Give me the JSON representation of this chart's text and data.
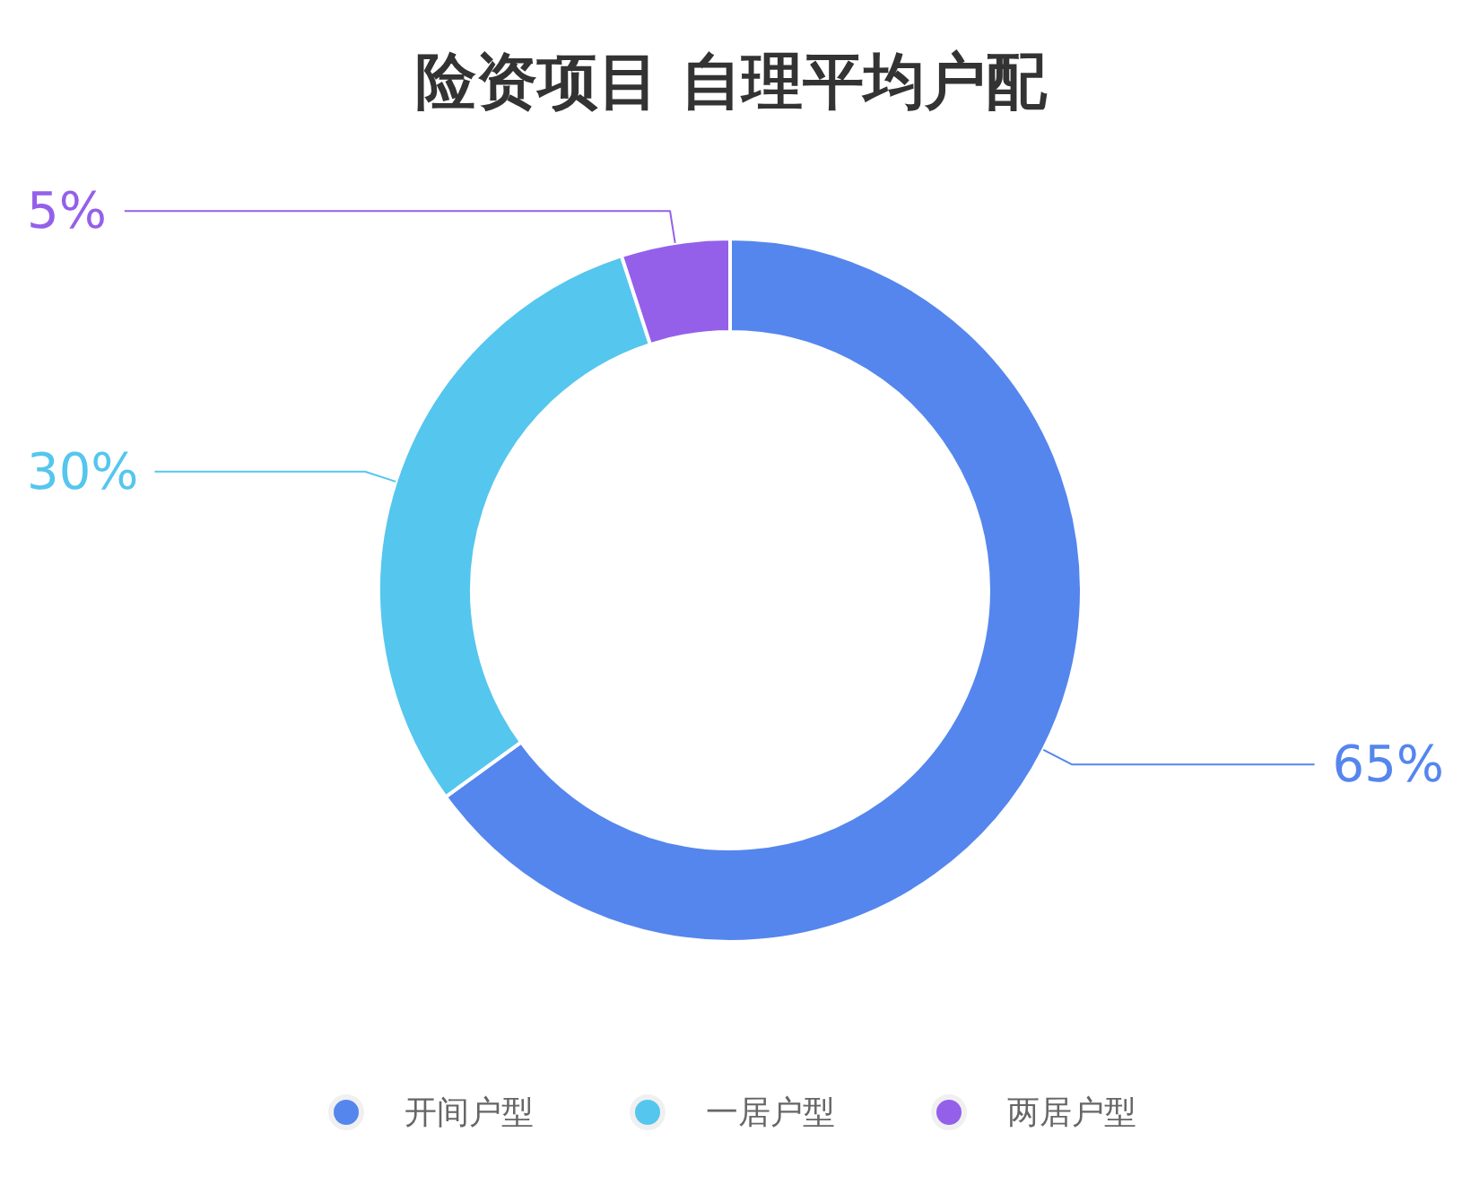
{
  "chart_data": {
    "type": "donut",
    "title": "险资项目 自理平均户配",
    "categories": [
      "开间户型",
      "一居户型",
      "两居户型"
    ],
    "values": [
      65,
      30,
      5
    ],
    "colors": [
      "#5586ee",
      "#55c6ee",
      "#9460ea"
    ],
    "value_labels": [
      "65%",
      "30%",
      "5%"
    ],
    "legend": "bottom"
  }
}
